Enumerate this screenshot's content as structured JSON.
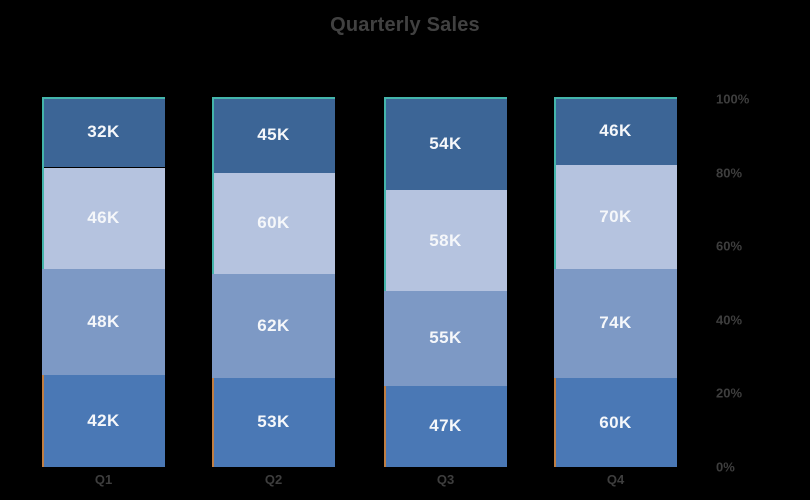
{
  "chart_data": {
    "type": "bar",
    "variant": "percent-stacked",
    "title": "Quarterly Sales",
    "categories": [
      "Q1",
      "Q2",
      "Q3",
      "Q4"
    ],
    "unit": "K",
    "series": [
      {
        "values": [
          42,
          53,
          47,
          60
        ],
        "labels": [
          "42K",
          "53K",
          "47K",
          "60K"
        ],
        "color": "#4a78b5"
      },
      {
        "values": [
          48,
          62,
          55,
          74
        ],
        "labels": [
          "48K",
          "62K",
          "55K",
          "74K"
        ],
        "color": "#7d99c5"
      },
      {
        "values": [
          46,
          60,
          58,
          70
        ],
        "labels": [
          "46K",
          "60K",
          "58K",
          "70K"
        ],
        "color": "#b5c3df"
      },
      {
        "values": [
          32,
          45,
          54,
          46
        ],
        "labels": [
          "32K",
          "45K",
          "54K",
          "46K"
        ],
        "color": "#3c6596"
      }
    ],
    "y_axis": {
      "position": "right",
      "range": [
        0,
        100
      ],
      "grid": false,
      "ticks": [
        {
          "label": "0%",
          "value": 0
        },
        {
          "label": "20%",
          "value": 20
        },
        {
          "label": "40%",
          "value": 40
        },
        {
          "label": "60%",
          "value": 60
        },
        {
          "label": "80%",
          "value": 80
        },
        {
          "label": "100%",
          "value": 100
        }
      ]
    },
    "legend": "none",
    "colors": {
      "background": "#000000",
      "title_text": "#414141",
      "axis_text": "#3e3e3e",
      "bar_label": "#f5f7fa",
      "teal_accent": "#44b5ab",
      "orange_accent": "#c07e42"
    }
  }
}
